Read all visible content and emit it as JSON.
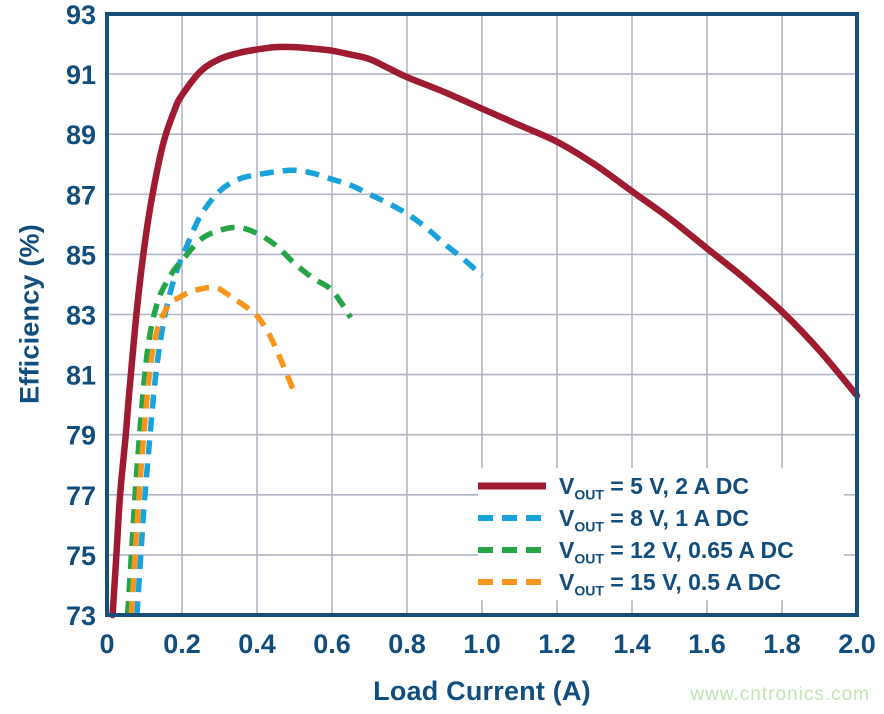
{
  "watermark": {
    "text": "www.cntronics.com",
    "color": "#c3e4b3"
  },
  "chart_data": {
    "type": "line",
    "title": "",
    "xlabel": "Load Current (A)",
    "ylabel": "Efficiency (%)",
    "xlim": [
      0,
      2.0
    ],
    "ylim": [
      73,
      93
    ],
    "grid": true,
    "legend_position": "lower right",
    "x_ticks": [
      0,
      0.2,
      0.4,
      0.6,
      0.8,
      1.0,
      1.2,
      1.4,
      1.6,
      1.8,
      2.0
    ],
    "x_tick_labels": [
      "0",
      "0.2",
      "0.4",
      "0.6",
      "0.8",
      "1.0",
      "1.2",
      "1.4",
      "1.6",
      "1.8",
      "2.0"
    ],
    "y_ticks": [
      73,
      75,
      77,
      79,
      81,
      83,
      85,
      87,
      89,
      91,
      93
    ],
    "y_tick_labels": [
      "73",
      "75",
      "77",
      "79",
      "81",
      "83",
      "85",
      "87",
      "89",
      "91",
      "93"
    ],
    "colors": {
      "text": "#114d7d",
      "border": "#174f78",
      "grid": "#b2b5c6",
      "background": "#ffffff"
    },
    "series": [
      {
        "name": "vout-5v",
        "label": {
          "base": "V",
          "sub": "OUT",
          "rest": " = 5 V, 2 A DC"
        },
        "color": "#9e1b32",
        "line_style": "solid",
        "points": [
          [
            0.015,
            73
          ],
          [
            0.025,
            75
          ],
          [
            0.035,
            77
          ],
          [
            0.05,
            79
          ],
          [
            0.06,
            80.5
          ],
          [
            0.08,
            83.2
          ],
          [
            0.1,
            85.3
          ],
          [
            0.12,
            86.9
          ],
          [
            0.15,
            88.7
          ],
          [
            0.18,
            89.8
          ],
          [
            0.2,
            90.3
          ],
          [
            0.25,
            91.1
          ],
          [
            0.3,
            91.5
          ],
          [
            0.35,
            91.7
          ],
          [
            0.4,
            91.82
          ],
          [
            0.45,
            91.9
          ],
          [
            0.5,
            91.9
          ],
          [
            0.55,
            91.85
          ],
          [
            0.6,
            91.78
          ],
          [
            0.65,
            91.65
          ],
          [
            0.7,
            91.5
          ],
          [
            0.75,
            91.2
          ],
          [
            0.8,
            90.9
          ],
          [
            0.9,
            90.4
          ],
          [
            1.0,
            89.85
          ],
          [
            1.1,
            89.3
          ],
          [
            1.2,
            88.75
          ],
          [
            1.3,
            88.0
          ],
          [
            1.4,
            87.1
          ],
          [
            1.5,
            86.2
          ],
          [
            1.6,
            85.2
          ],
          [
            1.7,
            84.2
          ],
          [
            1.8,
            83.1
          ],
          [
            1.9,
            81.8
          ],
          [
            2.0,
            80.3
          ]
        ]
      },
      {
        "name": "vout-8v",
        "label": {
          "base": "V",
          "sub": "OUT",
          "rest": " = 8 V, 1 A DC"
        },
        "color": "#1aa3da",
        "line_style": "dashed",
        "points": [
          [
            0.08,
            73
          ],
          [
            0.09,
            75
          ],
          [
            0.1,
            76.8
          ],
          [
            0.115,
            79
          ],
          [
            0.13,
            81
          ],
          [
            0.15,
            82.7
          ],
          [
            0.17,
            83.8
          ],
          [
            0.19,
            84.6
          ],
          [
            0.21,
            85.2
          ],
          [
            0.25,
            86.3
          ],
          [
            0.3,
            87.1
          ],
          [
            0.35,
            87.5
          ],
          [
            0.4,
            87.65
          ],
          [
            0.45,
            87.75
          ],
          [
            0.5,
            87.8
          ],
          [
            0.55,
            87.7
          ],
          [
            0.6,
            87.5
          ],
          [
            0.65,
            87.3
          ],
          [
            0.7,
            87.0
          ],
          [
            0.75,
            86.7
          ],
          [
            0.8,
            86.35
          ],
          [
            0.85,
            85.9
          ],
          [
            0.9,
            85.35
          ],
          [
            0.95,
            84.85
          ],
          [
            1.0,
            84.3
          ]
        ]
      },
      {
        "name": "vout-12v",
        "label": {
          "base": "V",
          "sub": "OUT",
          "rest": " = 12 V, 0.65 A DC"
        },
        "color": "#26a447",
        "line_style": "dashed",
        "points": [
          [
            0.055,
            73
          ],
          [
            0.065,
            75
          ],
          [
            0.075,
            77
          ],
          [
            0.09,
            79.5
          ],
          [
            0.105,
            81.5
          ],
          [
            0.12,
            82.7
          ],
          [
            0.14,
            83.6
          ],
          [
            0.16,
            84.1
          ],
          [
            0.18,
            84.5
          ],
          [
            0.2,
            84.8
          ],
          [
            0.25,
            85.5
          ],
          [
            0.3,
            85.8
          ],
          [
            0.35,
            85.9
          ],
          [
            0.4,
            85.7
          ],
          [
            0.45,
            85.3
          ],
          [
            0.5,
            84.7
          ],
          [
            0.55,
            84.2
          ],
          [
            0.6,
            83.8
          ],
          [
            0.65,
            82.9
          ]
        ]
      },
      {
        "name": "vout-15v",
        "label": {
          "base": "V",
          "sub": "OUT",
          "rest": " = 15 V, 0.5 A DC"
        },
        "color": "#f8951d",
        "line_style": "dashed",
        "points": [
          [
            0.065,
            73
          ],
          [
            0.075,
            75
          ],
          [
            0.085,
            76.9
          ],
          [
            0.1,
            79.3
          ],
          [
            0.115,
            81.2
          ],
          [
            0.13,
            82.3
          ],
          [
            0.15,
            83.0
          ],
          [
            0.17,
            83.4
          ],
          [
            0.19,
            83.55
          ],
          [
            0.22,
            83.75
          ],
          [
            0.25,
            83.85
          ],
          [
            0.275,
            83.9
          ],
          [
            0.3,
            83.85
          ],
          [
            0.33,
            83.6
          ],
          [
            0.36,
            83.35
          ],
          [
            0.4,
            82.95
          ],
          [
            0.43,
            82.4
          ],
          [
            0.46,
            81.6
          ],
          [
            0.48,
            81.0
          ],
          [
            0.5,
            80.4
          ]
        ]
      }
    ]
  }
}
